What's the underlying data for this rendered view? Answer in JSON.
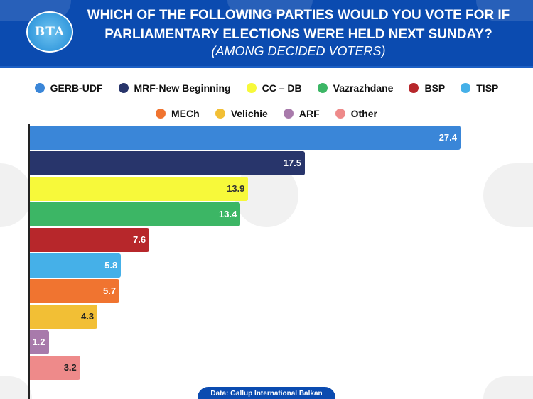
{
  "header": {
    "logo": "BTA",
    "title": "WHICH OF THE FOLLOWING PARTIES WOULD YOU VOTE FOR IF PARLIAMENTARY ELECTIONS WERE HELD NEXT SUNDAY?",
    "subtitle": "(AMONG DECIDED VOTERS)"
  },
  "source": "Data: Gallup International Balkan",
  "chart_data": {
    "type": "bar",
    "orientation": "horizontal",
    "title": "WHICH OF THE FOLLOWING PARTIES WOULD YOU VOTE FOR IF PARLIAMENTARY ELECTIONS WERE HELD NEXT SUNDAY?",
    "subtitle": "(AMONG DECIDED VOTERS)",
    "categories": [
      "GERB-UDF",
      "MRF-New Beginning",
      "CC – DB",
      "Vazrazhdane",
      "BSP",
      "TISP",
      "MECh",
      "Velichie",
      "ARF",
      "Other"
    ],
    "values": [
      27.4,
      17.5,
      13.9,
      13.4,
      7.6,
      5.8,
      5.7,
      4.3,
      1.2,
      3.2
    ],
    "labels": [
      "27.4",
      "17.5",
      "13.9",
      "13.4",
      "7.6",
      "5.8",
      "5.7",
      "4.3",
      "1.2",
      "3.2"
    ],
    "colors": [
      "#3a86d8",
      "#28356b",
      "#f7f93a",
      "#3cb665",
      "#b7272b",
      "#45b0e8",
      "#f07430",
      "#f2bf35",
      "#a87aab",
      "#ee8a8a"
    ],
    "label_colors": [
      "#ffffff",
      "#ffffff",
      "#333333",
      "#ffffff",
      "#ffffff",
      "#ffffff",
      "#ffffff",
      "#222222",
      "#ffffff",
      "#222222"
    ],
    "xlim": [
      0,
      27.4
    ],
    "legend": "top-center",
    "grid": false
  }
}
